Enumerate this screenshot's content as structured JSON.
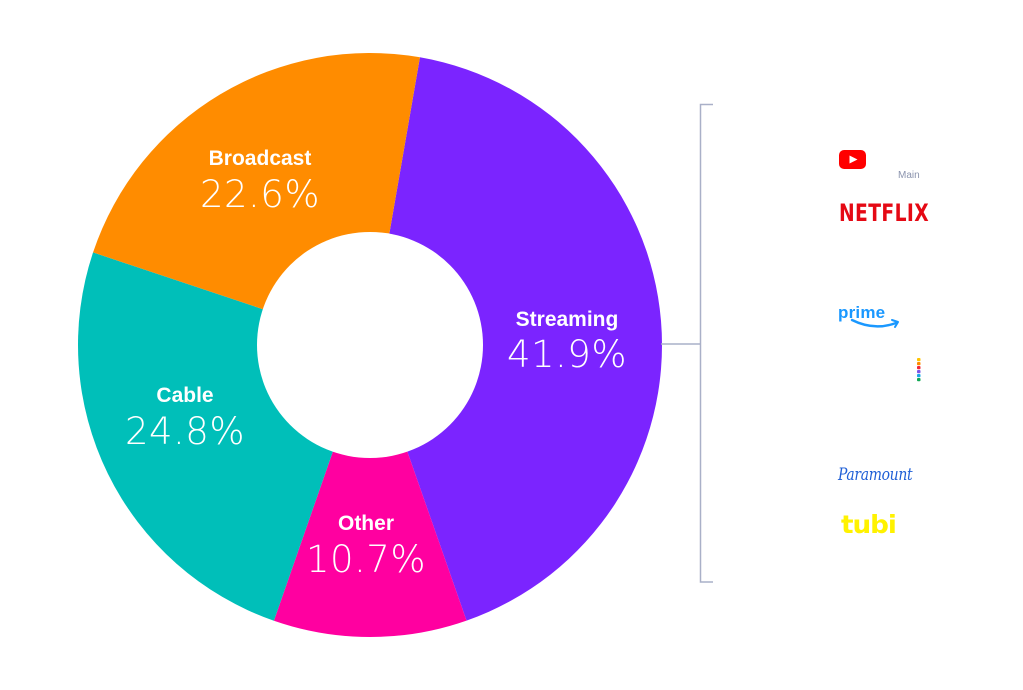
{
  "chart_data": {
    "type": "pie",
    "variant": "donut",
    "title": "",
    "categories": [
      "Streaming",
      "Other",
      "Cable",
      "Broadcast"
    ],
    "values": [
      41.9,
      10.7,
      24.8,
      22.6
    ],
    "value_labels": [
      "41.9%",
      "10.7%",
      "24.8%",
      "22.6%"
    ],
    "colors": [
      "#7b24ff",
      "#ff00a0",
      "#00bfb9",
      "#ff8c00"
    ],
    "start_angle_deg": 9.85,
    "direction": "clockwise",
    "legend": "none (labels inside slices)",
    "annotation": {
      "target": "Streaming",
      "type": "bracket",
      "label": "Main",
      "items": [
        "YouTube",
        "Netflix",
        "Prime Video",
        "Peacock",
        "Paramount",
        "Tubi"
      ]
    }
  },
  "slices": [
    {
      "name": "Streaming",
      "value": "41.9%",
      "color": "#7b24ff"
    },
    {
      "name": "Other",
      "value": "10.7%",
      "color": "#ff00a0"
    },
    {
      "name": "Cable",
      "value": "24.8%",
      "color": "#00bfb9"
    },
    {
      "name": "Broadcast",
      "value": "22.6%",
      "color": "#ff8c00"
    }
  ],
  "bracket": {
    "color": "#a9b0c8",
    "main_label": "Main",
    "logos": {
      "youtube": "youtube-logo-icon",
      "netflix": "NETFLIX",
      "prime": "prime",
      "peacock": "peacock-logo-icon",
      "paramount": "Paramount",
      "tubi": "tubi"
    },
    "logo_colors": {
      "youtube": "#ff0000",
      "netflix": "#e50914",
      "prime": "#1a98ff",
      "peacock": [
        "#ffc400",
        "#ff8a00",
        "#f0263a",
        "#7e56e6",
        "#1aa7e8",
        "#11a854"
      ],
      "paramount": "#1f5fd6",
      "tubi": "#fff200"
    }
  }
}
